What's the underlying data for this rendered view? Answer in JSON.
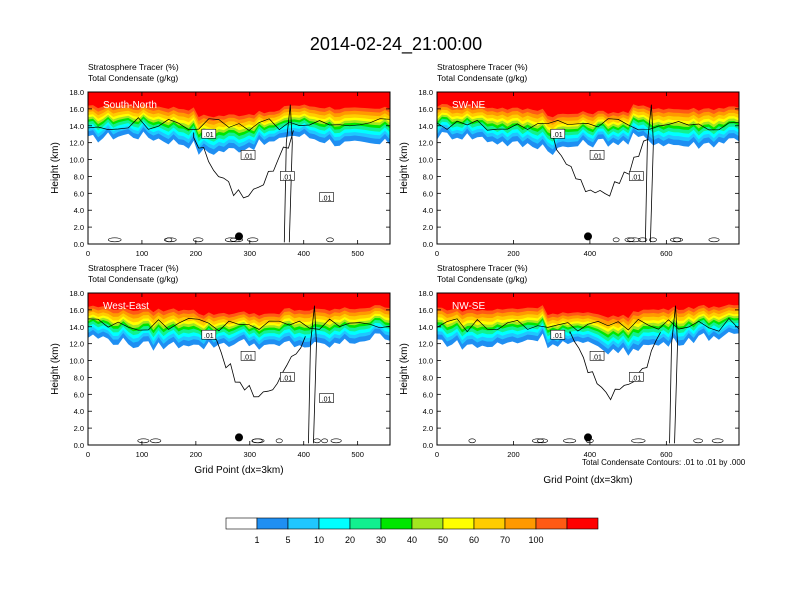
{
  "title": "2014-02-24_21:00:00",
  "note": "Total Condensate Contours: .01 to .01 by .000",
  "xlabel": "Grid Point (dx=3km)",
  "ylabel": "Height (km)",
  "colors": {
    "bands": [
      "#ffffff",
      "#1f8ff2",
      "#1fc7ff",
      "#00ffff",
      "#12f08f",
      "#00e600",
      "#a3e620",
      "#ffff00",
      "#ffcc00",
      "#ff9900",
      "#ff5a14",
      "#ff0000"
    ]
  },
  "chart_data": [
    {
      "type": "heatmap",
      "name": "panel-south-north",
      "panel_label": "South-North",
      "title_line1": "Stratosphere Tracer   (%)",
      "title_line2": "Total Condensate   (g/kg)",
      "xlim": [
        0,
        560
      ],
      "ylim": [
        0,
        18
      ],
      "xticks": [
        "0",
        "100",
        "200",
        "300",
        "400",
        "500"
      ],
      "yticks": [
        "0.0",
        "2.0",
        "4.0",
        "6.0",
        "8.0",
        "10.0",
        "12.0",
        "14.0",
        "16.0",
        "18.0"
      ],
      "contour_labels": [
        ".01",
        ".01",
        ".01",
        ".01"
      ],
      "marker_x": 280
    },
    {
      "type": "heatmap",
      "name": "panel-sw-ne",
      "panel_label": "SW-NE",
      "title_line1": "Stratosphere Tracer   (%)",
      "title_line2": "Total Condensate   (g/kg)",
      "xlim": [
        0,
        790
      ],
      "ylim": [
        0,
        18
      ],
      "xticks": [
        "0",
        "200",
        "400",
        "600"
      ],
      "yticks": [
        "0.0",
        "2.0",
        "4.0",
        "6.0",
        "8.0",
        "10.0",
        "12.0",
        "14.0",
        "16.0",
        "18.0"
      ],
      "contour_labels": [
        ".01",
        ".01",
        ".01"
      ],
      "marker_x": 395
    },
    {
      "type": "heatmap",
      "name": "panel-west-east",
      "panel_label": "West-East",
      "title_line1": "Stratosphere Tracer   (%)",
      "title_line2": "Total Condensate   (g/kg)",
      "xlim": [
        0,
        560
      ],
      "ylim": [
        0,
        18
      ],
      "xticks": [
        "0",
        "100",
        "200",
        "300",
        "400",
        "500"
      ],
      "yticks": [
        "0.0",
        "2.0",
        "4.0",
        "6.0",
        "8.0",
        "10.0",
        "12.0",
        "14.0",
        "16.0",
        "18.0"
      ],
      "contour_labels": [
        ".01",
        ".01",
        ".01",
        ".01"
      ],
      "marker_x": 280
    },
    {
      "type": "heatmap",
      "name": "panel-nw-se",
      "panel_label": "NW-SE",
      "title_line1": "Stratosphere Tracer   (%)",
      "title_line2": "Total Condensate   (g/kg)",
      "xlim": [
        0,
        790
      ],
      "ylim": [
        0,
        18
      ],
      "xticks": [
        "0",
        "200",
        "400",
        "600"
      ],
      "yticks": [
        "0.0",
        "2.0",
        "4.0",
        "6.0",
        "8.0",
        "10.0",
        "12.0",
        "14.0",
        "16.0",
        "18.0"
      ],
      "contour_labels": [
        ".01",
        ".01",
        ".01"
      ],
      "marker_x": 395
    }
  ],
  "colorbar": {
    "labels": [
      "1",
      "5",
      "10",
      "20",
      "30",
      "40",
      "50",
      "60",
      "70",
      "100"
    ]
  }
}
